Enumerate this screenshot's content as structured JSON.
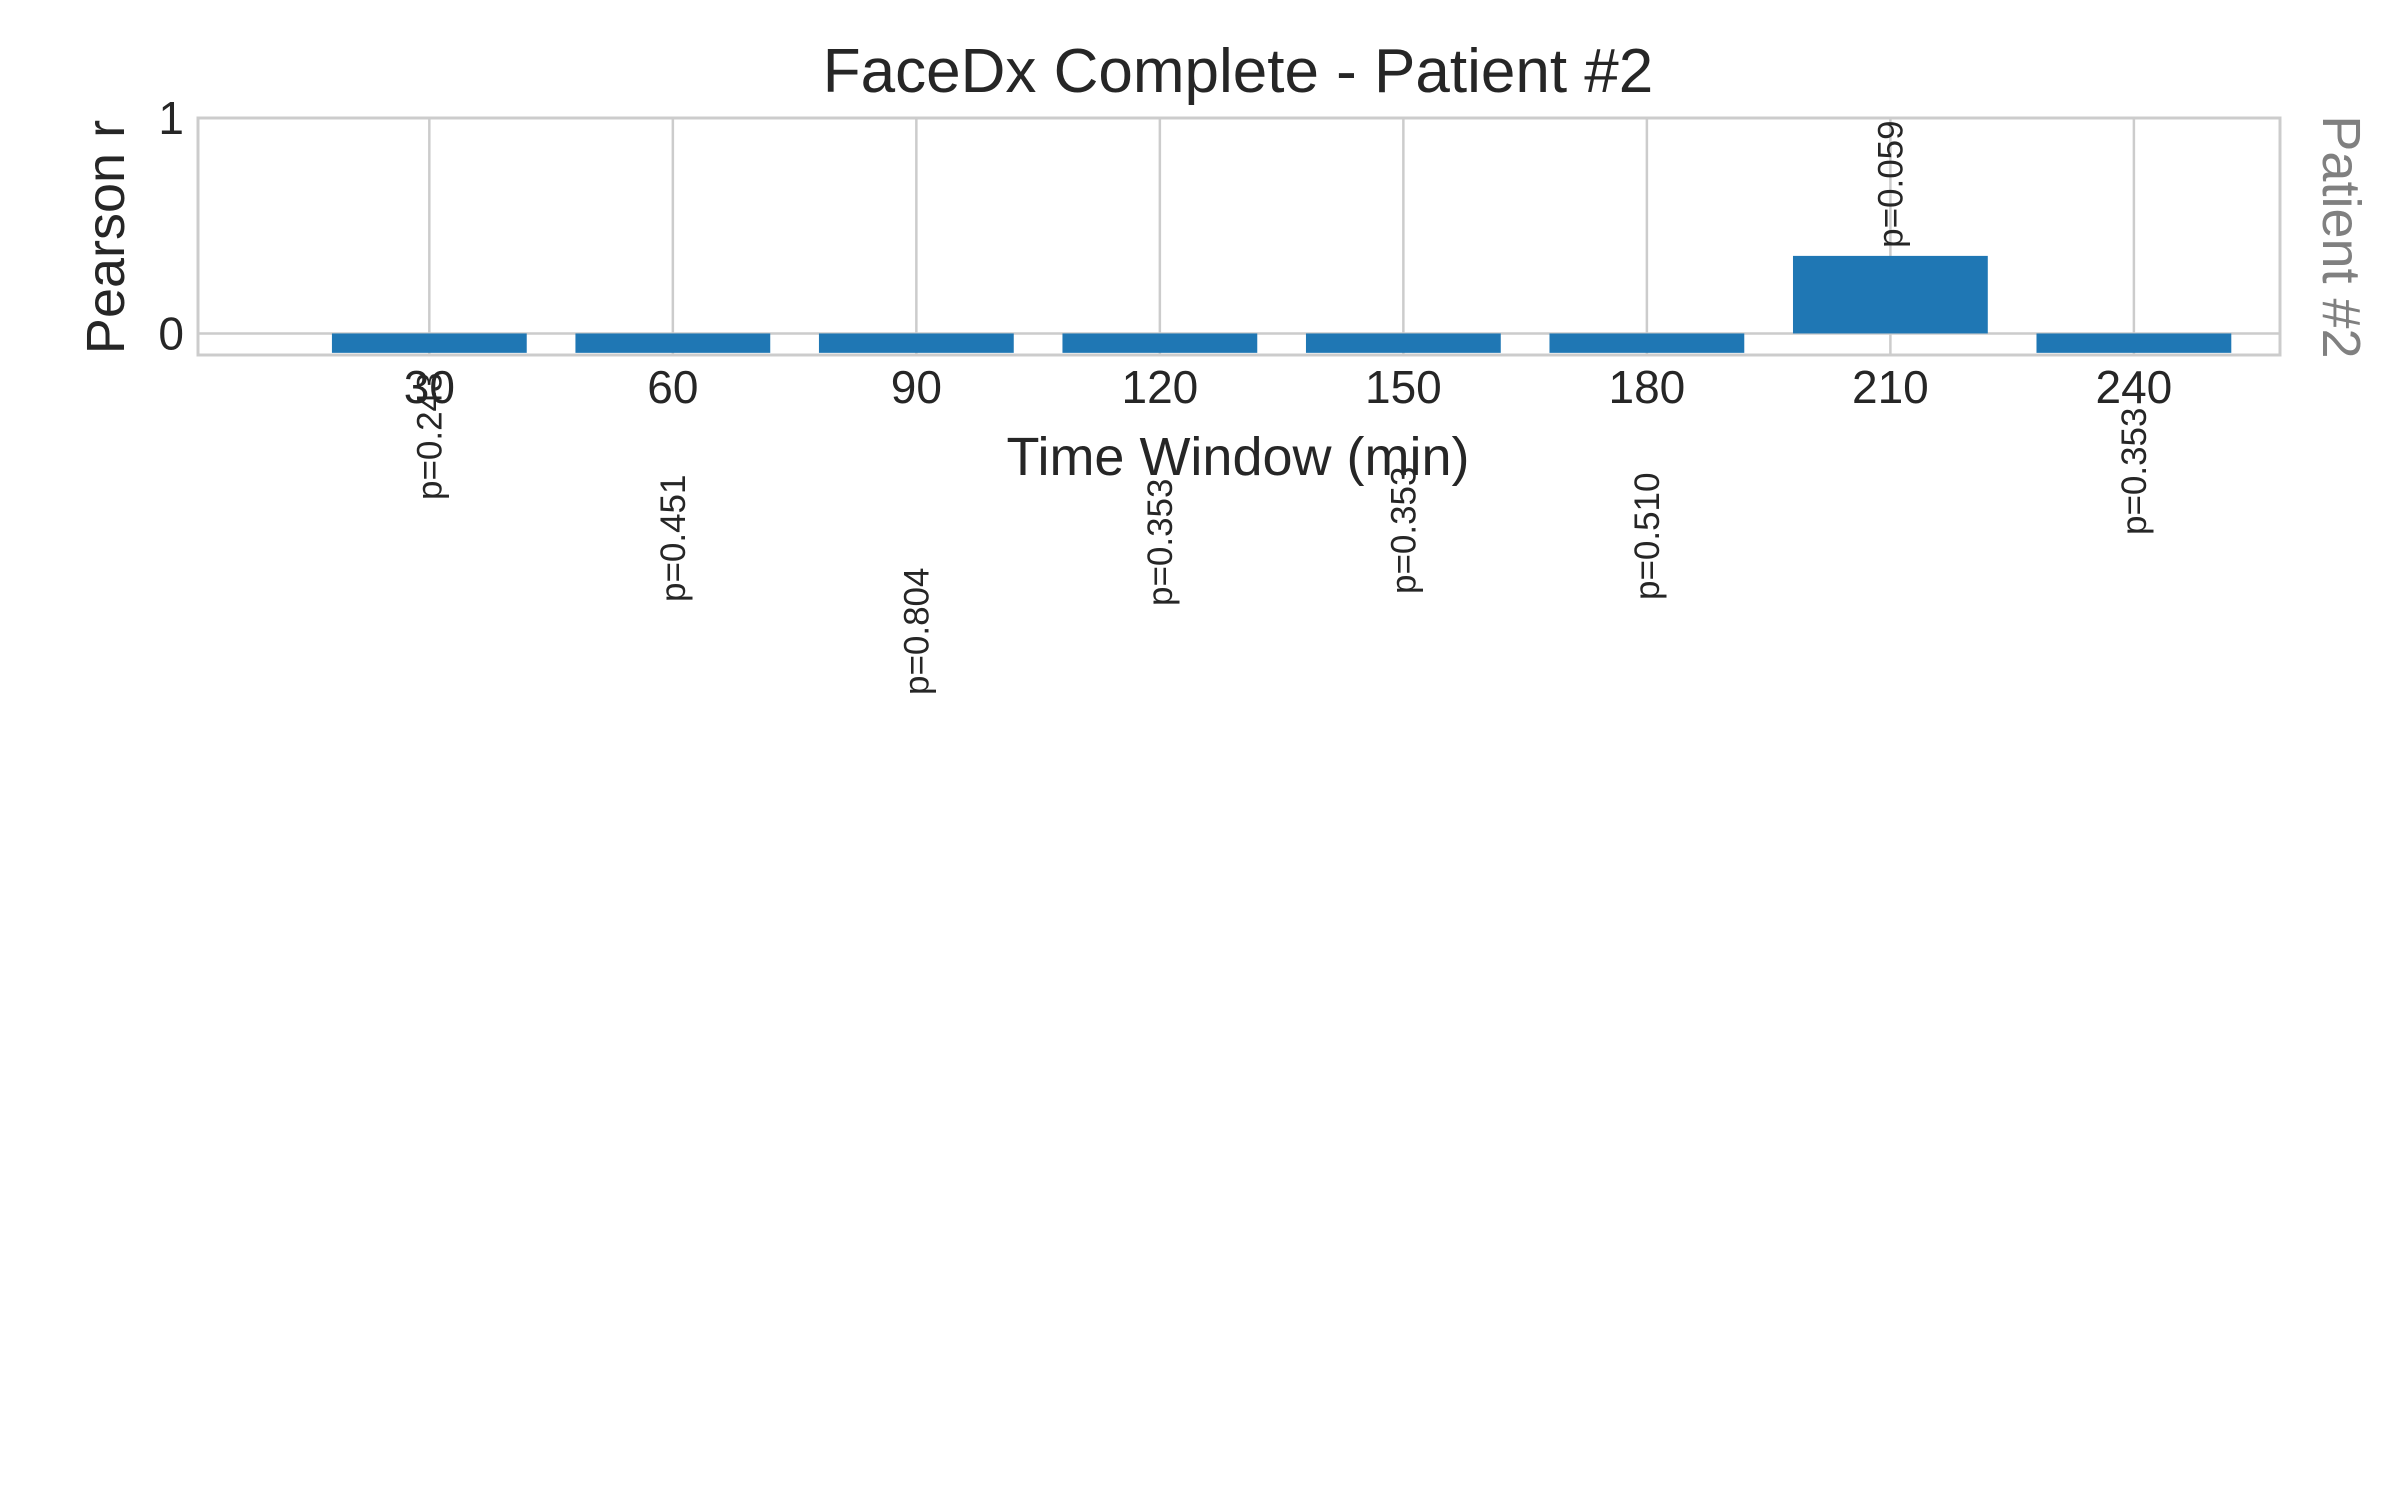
{
  "chart_data": {
    "type": "bar",
    "title": "FaceDx Complete - Patient #2",
    "xlabel": "Time Window (min)",
    "ylabel": "Pearson r",
    "side_label": "Patient #2",
    "categories": [
      "30",
      "60",
      "90",
      "120",
      "150",
      "180",
      "210",
      "240"
    ],
    "values": [
      -0.09,
      -0.09,
      -0.09,
      -0.09,
      -0.09,
      -0.09,
      0.36,
      -0.09
    ],
    "annotations": [
      "p=0.243",
      "p=0.451",
      "p=0.804",
      "p=0.353",
      "p=0.353",
      "p=0.510",
      "p=0.059",
      "p=0.353"
    ],
    "ylim": [
      -0.1,
      1.0
    ],
    "yticks": [
      "0",
      "1"
    ],
    "ytick_values": [
      0,
      1
    ],
    "grid": true,
    "bar_color": "#1f77b4"
  }
}
